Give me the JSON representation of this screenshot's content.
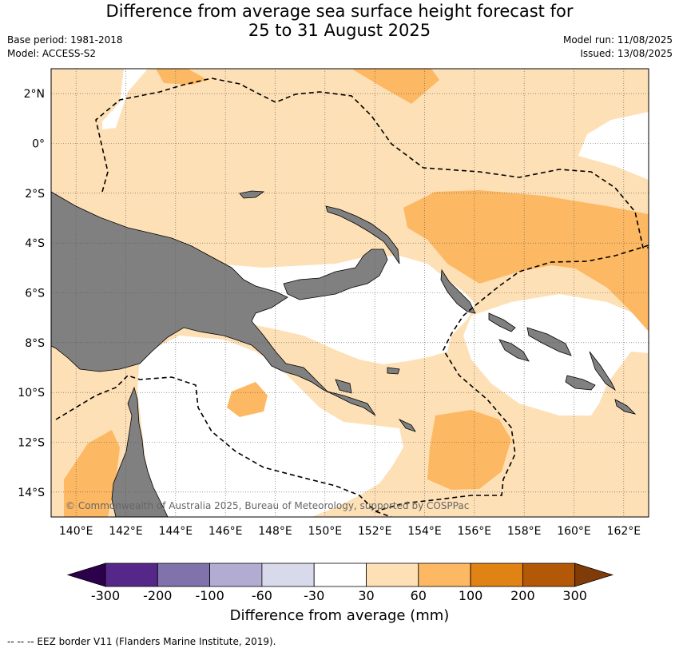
{
  "header": {
    "title_line1": "Difference from average sea surface height forecast for",
    "title_line2": "25 to 31 August 2025",
    "base_period": "Base period: 1981-2018",
    "model": "Model: ACCESS-S2",
    "model_run": "Model run: 11/08/2025",
    "issued": "Issued: 13/08/2025"
  },
  "map": {
    "lon_range": [
      139,
      163
    ],
    "lat_range": [
      -15,
      3
    ],
    "lon_ticks": [
      "140°E",
      "142°E",
      "144°E",
      "146°E",
      "148°E",
      "150°E",
      "152°E",
      "154°E",
      "156°E",
      "158°E",
      "160°E",
      "162°E"
    ],
    "lat_ticks": [
      "2°N",
      "0°",
      "2°S",
      "4°S",
      "6°S",
      "8°S",
      "10°S",
      "12°S",
      "14°S"
    ],
    "land_color": "#808080",
    "copyright": "© Commonwealth of Australia 2025, Bureau of Meteorology, supported by COSPPac"
  },
  "colorbar": {
    "title": "Difference from average (mm)",
    "ticks": [
      "-300",
      "-200",
      "-100",
      "-60",
      "-30",
      "30",
      "60",
      "100",
      "200",
      "300"
    ],
    "colors": [
      "#2d004b",
      "#542788",
      "#8073ac",
      "#b2abd2",
      "#d8daeb",
      "#ffffff",
      "#fee0b6",
      "#fdb863",
      "#e08214",
      "#b35806",
      "#7f3b08"
    ]
  },
  "footnote": "--  --  -- EEZ border V11 (Flanders Marine Institute, 2019)."
}
